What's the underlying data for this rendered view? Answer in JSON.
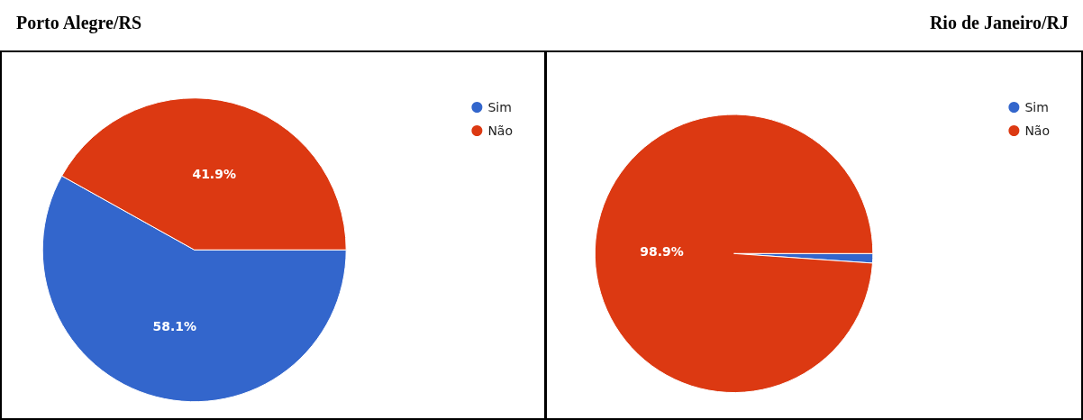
{
  "chart_data": [
    {
      "type": "pie",
      "title": "Porto Alegre/RS",
      "categories": [
        "Sim",
        "Não"
      ],
      "values": [
        58.1,
        41.9
      ],
      "colors": [
        "#3366cc",
        "#dc3912"
      ],
      "value_labels": [
        "58.1%",
        "41.9%"
      ],
      "legend": "top right"
    },
    {
      "type": "pie",
      "title": "Rio de Janeiro/RJ",
      "categories": [
        "Sim",
        "Não"
      ],
      "values": [
        1.1,
        98.9
      ],
      "colors": [
        "#3366cc",
        "#dc3912"
      ],
      "value_labels": [
        null,
        "98.9%"
      ],
      "legend": "top right"
    }
  ]
}
